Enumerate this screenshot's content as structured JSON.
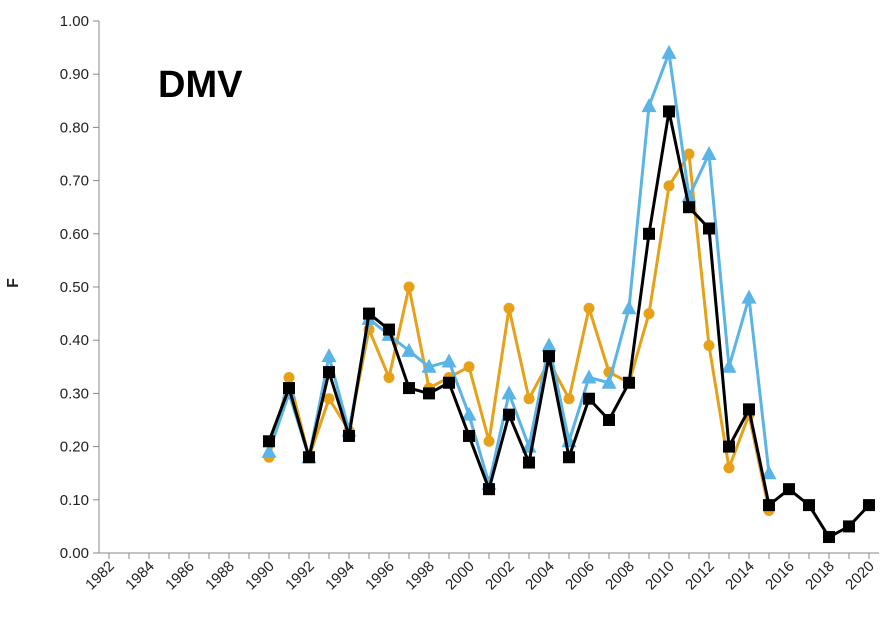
{
  "chart_data": {
    "type": "line",
    "annotation": "DMV",
    "y_label": "F",
    "categories": [
      "1982",
      null,
      "1984",
      null,
      "1986",
      null,
      "1988",
      null,
      "1990",
      null,
      "1992",
      null,
      "1994",
      null,
      "1996",
      null,
      "1998",
      null,
      "2000",
      null,
      "2002",
      null,
      "2004",
      null,
      "2006",
      null,
      "2008",
      null,
      "2010",
      null,
      "2012",
      null,
      "2014",
      null,
      "2016",
      null,
      "2018",
      null,
      "2020"
    ],
    "series": [
      {
        "color": "#e6a118",
        "marker": "circle",
        "values": [
          null,
          null,
          null,
          null,
          null,
          null,
          null,
          null,
          0.18,
          0.33,
          0.18,
          0.29,
          0.23,
          0.42,
          0.33,
          0.5,
          0.31,
          0.33,
          0.35,
          0.21,
          0.46,
          0.29,
          0.36,
          0.29,
          0.46,
          0.34,
          0.32,
          0.45,
          0.69,
          0.75,
          0.39,
          0.16,
          0.26,
          0.08,
          null,
          null,
          null,
          null,
          null
        ]
      },
      {
        "color": "#5ab4e5",
        "marker": "triangle",
        "values": [
          null,
          null,
          null,
          null,
          null,
          null,
          null,
          null,
          0.19,
          0.3,
          0.18,
          0.37,
          0.23,
          0.44,
          0.41,
          0.38,
          0.35,
          0.36,
          0.26,
          0.13,
          0.3,
          0.2,
          0.39,
          0.21,
          0.33,
          0.32,
          0.46,
          0.84,
          0.94,
          0.67,
          0.75,
          0.35,
          0.48,
          0.15,
          null,
          null,
          null,
          null,
          null
        ]
      },
      {
        "color": "#000000",
        "marker": "square",
        "values": [
          null,
          null,
          null,
          null,
          null,
          null,
          null,
          null,
          0.21,
          0.31,
          0.18,
          0.34,
          0.22,
          0.45,
          0.42,
          0.31,
          0.3,
          0.32,
          0.22,
          0.12,
          0.26,
          0.17,
          0.37,
          0.18,
          0.29,
          0.25,
          0.32,
          0.6,
          0.83,
          0.65,
          0.61,
          0.2,
          0.27,
          0.09,
          0.12,
          0.09,
          0.03,
          0.05,
          0.09
        ]
      }
    ],
    "ylim": [
      0,
      1
    ],
    "yticks": [
      {
        "value": 0,
        "label": "0.00"
      },
      {
        "value": 0.1,
        "label": "0.10"
      },
      {
        "value": 0.2,
        "label": "0.20"
      },
      {
        "value": 0.3,
        "label": "0.30"
      },
      {
        "value": 0.4,
        "label": "0.40"
      },
      {
        "value": 0.5,
        "label": "0.50"
      },
      {
        "value": 0.6,
        "label": "0.60"
      },
      {
        "value": 0.7,
        "label": "0.70"
      },
      {
        "value": 0.8,
        "label": "0.80"
      },
      {
        "value": 0.9,
        "label": "0.90"
      },
      {
        "value": 1,
        "label": "1.00"
      }
    ],
    "grid": false
  }
}
